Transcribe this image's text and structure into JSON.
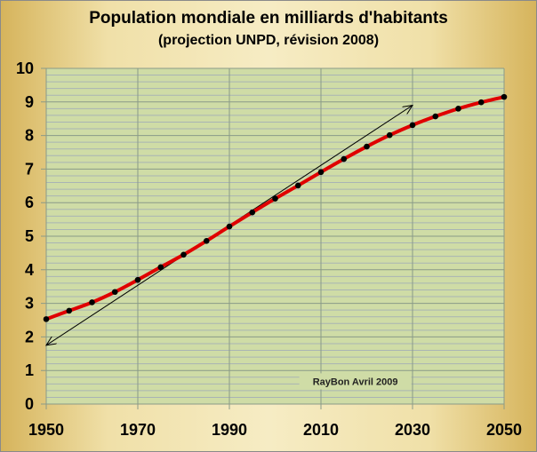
{
  "chart_data": {
    "type": "line",
    "title": "Population mondiale en milliards d'habitants",
    "subtitle": "(projection UNPD, révision 2008)",
    "xlabel": "",
    "ylabel": "",
    "xlim": [
      1950,
      2050
    ],
    "ylim": [
      0,
      10
    ],
    "x_ticks": [
      1950,
      1970,
      1990,
      2010,
      2030,
      2050
    ],
    "y_ticks": [
      0,
      1,
      2,
      3,
      4,
      5,
      6,
      7,
      8,
      9,
      10
    ],
    "grid": true,
    "series": [
      {
        "name": "Population",
        "color": "#e00000",
        "x": [
          1950,
          1955,
          1960,
          1965,
          1970,
          1975,
          1980,
          1985,
          1990,
          1995,
          2000,
          2005,
          2010,
          2015,
          2020,
          2025,
          2030,
          2035,
          2040,
          2045,
          2050
        ],
        "values": [
          2.53,
          2.78,
          3.03,
          3.34,
          3.7,
          4.08,
          4.45,
          4.86,
          5.29,
          5.71,
          6.12,
          6.51,
          6.91,
          7.3,
          7.67,
          8.01,
          8.31,
          8.57,
          8.8,
          8.99,
          9.15
        ]
      }
    ],
    "trend_arrow": {
      "from": [
        1950,
        1.75
      ],
      "to": [
        2030,
        8.9
      ],
      "color": "#000000"
    },
    "annotation": "RayBon Avril 2009",
    "colors": {
      "plot_bg": "#cfdca6",
      "grid": "#8a9a88",
      "minor_grid": "#a9b4b4"
    }
  }
}
